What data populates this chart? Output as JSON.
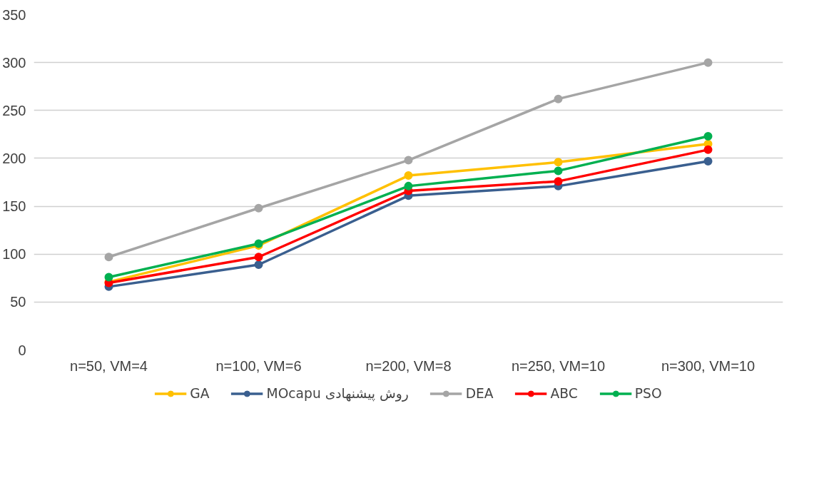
{
  "chart_data": {
    "type": "line",
    "categories": [
      "n=50, VM=4",
      "n=100, VM=6",
      "n=200, VM=8",
      "n=250, VM=10",
      "n=300, VM=10"
    ],
    "series": [
      {
        "name": "GA",
        "color": "#ffc000",
        "values": [
          71,
          109,
          182,
          196,
          215
        ]
      },
      {
        "name": "MOcapu روش پیشنهادی",
        "color": "#3a5f8f",
        "values": [
          66,
          89,
          161,
          171,
          197
        ]
      },
      {
        "name": "DEA",
        "color": "#a5a5a5",
        "values": [
          97,
          148,
          198,
          262,
          300
        ]
      },
      {
        "name": "ABC",
        "color": "#ff0000",
        "values": [
          70,
          97,
          166,
          176,
          209
        ]
      },
      {
        "name": "PSO",
        "color": "#00b050",
        "values": [
          76,
          111,
          171,
          187,
          223
        ]
      }
    ],
    "ylim": [
      0,
      350
    ],
    "yticks": [
      0,
      50,
      100,
      150,
      200,
      250,
      300,
      350
    ],
    "grid": "y",
    "legend": "bottom",
    "marker": "circle",
    "line_style": "solid"
  }
}
